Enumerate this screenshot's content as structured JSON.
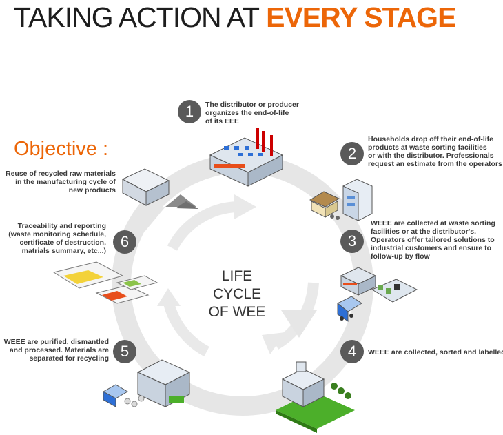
{
  "title": {
    "part1": "TAKING ACTION AT",
    "part2": "EVERY STAGE"
  },
  "objective": {
    "heading": "Objective :",
    "lines": [
      "Reuse of recycled raw materials",
      "in the manufacturing cycle of",
      "new products"
    ]
  },
  "center": {
    "line1": "LIFE CYCLE",
    "line2": "OF WEE"
  },
  "steps": [
    {
      "number": "1",
      "lines": [
        "The distributor or producer",
        "organizes the end-of-life",
        "of its EEE"
      ]
    },
    {
      "number": "2",
      "lines": [
        "Households drop off their end-of-life",
        "products at waste sorting facilities",
        "or with the distributor. Professionals",
        "request an estimate from the operators"
      ]
    },
    {
      "number": "3",
      "lines": [
        "WEEE are collected at waste sorting",
        "facilities or at the distributor's.",
        "Operators offer tailored solutions to",
        "industrial customers and ensure to",
        "follow-up by flow"
      ]
    },
    {
      "number": "4",
      "lines": [
        "WEEE are collected, sorted and labelled"
      ]
    },
    {
      "number": "5",
      "lines": [
        "WEEE are purified, dismantled",
        "and processed. Materials are",
        "separated for recycling"
      ]
    },
    {
      "number": "6",
      "lines": [
        "Traceability and reporting",
        "(waste monitoring schedule,",
        "certificate of destruction,",
        "matrials summary, etc...)"
      ]
    }
  ],
  "colors": {
    "accent": "#ec6608",
    "badge": "#5a5a5a",
    "ring": "#e4e4e4",
    "text": "#333333"
  }
}
